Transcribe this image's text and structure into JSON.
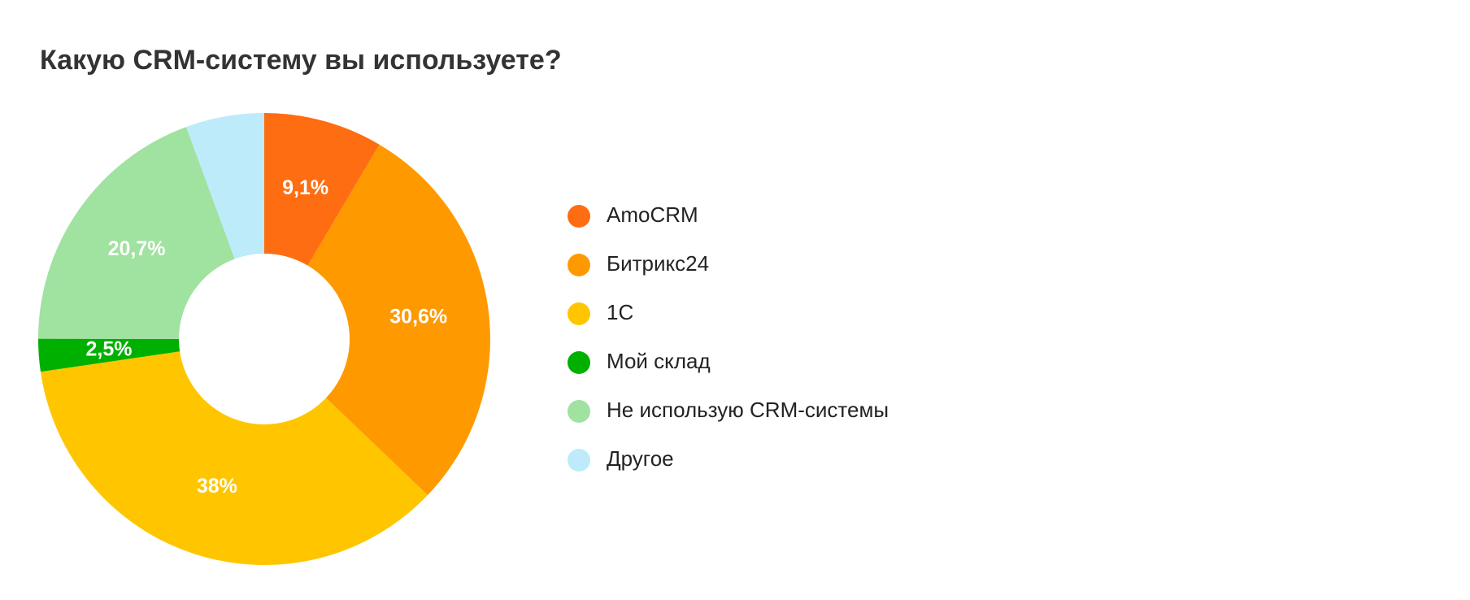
{
  "chart_data": {
    "type": "donut",
    "title": "Какую CRM-систему вы используете?",
    "categories": [
      "AmoCRM",
      "Битрикс24",
      "1С",
      "Мой склад",
      "Не использую CRM-системы",
      "Другое"
    ],
    "values": [
      9.1,
      30.6,
      38,
      2.5,
      20.7,
      6
    ],
    "value_labels": [
      "9,1%",
      "30,6%",
      "38%",
      "2,5%",
      "20,7%",
      null
    ],
    "colors": [
      "#ff6d12",
      "#ff9900",
      "#ffc600",
      "#00b000",
      "#a0e2a0",
      "#bdebf9"
    ],
    "legend": "right"
  }
}
